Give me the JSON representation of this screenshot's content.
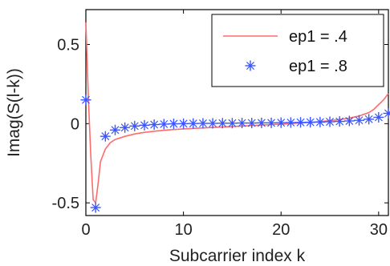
{
  "chart_data": {
    "type": "line",
    "xlabel": "Subcarrier index k",
    "ylabel": "Imag(S(l-k))",
    "xlim": [
      0,
      31
    ],
    "ylim": [
      -0.58,
      0.72
    ],
    "xticks": [
      0,
      10,
      20,
      30
    ],
    "xtick_labels": [
      "0",
      "10",
      "20",
      "30"
    ],
    "yticks": [
      -0.5,
      0,
      0.5
    ],
    "ytick_labels": [
      "-0.5",
      "0",
      "0.5"
    ],
    "grid": false,
    "legend_position": "top-right",
    "series": [
      {
        "name": "ep1 = .4",
        "style": "line",
        "color": "#ff6b6b",
        "x": [
          0,
          0.25,
          0.5,
          0.75,
          1,
          1.25,
          1.5,
          2,
          2.5,
          3,
          4,
          5,
          6,
          7,
          8,
          9,
          10,
          11,
          12,
          13,
          14,
          15,
          16,
          17,
          18,
          19,
          20,
          21,
          22,
          23,
          24,
          25,
          26,
          27,
          28,
          29,
          29.5,
          30,
          30.5,
          31
        ],
        "y": [
          0.64,
          0.18,
          -0.2,
          -0.48,
          -0.5,
          -0.38,
          -0.24,
          -0.16,
          -0.12,
          -0.1,
          -0.08,
          -0.065,
          -0.055,
          -0.048,
          -0.042,
          -0.037,
          -0.033,
          -0.03,
          -0.027,
          -0.024,
          -0.021,
          -0.018,
          -0.015,
          -0.012,
          -0.009,
          -0.006,
          -0.003,
          0.0,
          0.004,
          0.008,
          0.013,
          0.019,
          0.026,
          0.035,
          0.048,
          0.07,
          0.09,
          0.12,
          0.15,
          0.19
        ]
      },
      {
        "name": "ep1 = .8",
        "style": "markers",
        "marker": "star",
        "color": "#3a55ff",
        "x": [
          0,
          1,
          2,
          3,
          4,
          5,
          6,
          7,
          8,
          9,
          10,
          11,
          12,
          13,
          14,
          15,
          16,
          17,
          18,
          19,
          20,
          21,
          22,
          23,
          24,
          25,
          26,
          27,
          28,
          29,
          30,
          31
        ],
        "y": [
          0.15,
          -0.53,
          -0.08,
          -0.04,
          -0.025,
          -0.015,
          -0.01,
          -0.006,
          -0.003,
          -0.001,
          0.0,
          0.001,
          0.002,
          0.002,
          0.003,
          0.003,
          0.004,
          0.004,
          0.005,
          0.005,
          0.006,
          0.007,
          0.008,
          0.009,
          0.01,
          0.012,
          0.014,
          0.017,
          0.021,
          0.028,
          0.04,
          0.065
        ]
      }
    ]
  }
}
